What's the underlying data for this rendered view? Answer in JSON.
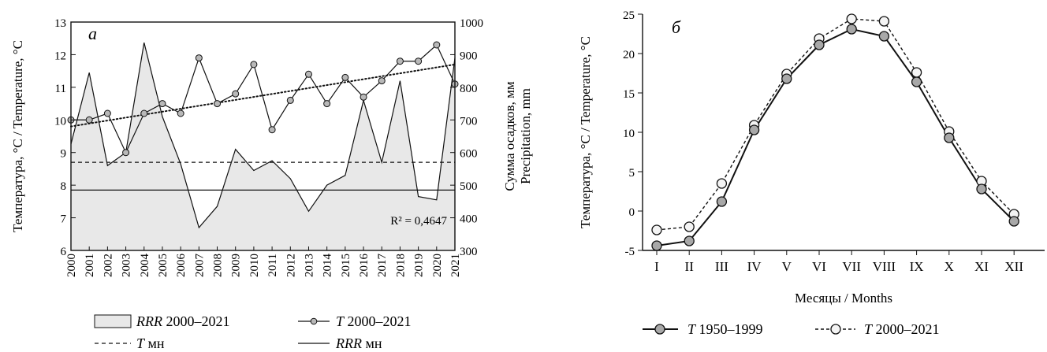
{
  "chart_data": [
    {
      "panel_label": "а",
      "type": "line",
      "x": [
        2000,
        2001,
        2002,
        2003,
        2004,
        2005,
        2006,
        2007,
        2008,
        2009,
        2010,
        2011,
        2012,
        2013,
        2014,
        2015,
        2016,
        2017,
        2018,
        2019,
        2020,
        2021
      ],
      "xticks": [
        "2000",
        "2001",
        "2002",
        "2003",
        "2004",
        "2005",
        "2006",
        "2007",
        "2008",
        "2009",
        "2010",
        "2011",
        "2012",
        "2013",
        "2014",
        "2015",
        "2016",
        "2017",
        "2018",
        "2019",
        "2020",
        "2021"
      ],
      "series": [
        {
          "name_italic": "RRR",
          "name_rest": " 2000–2021",
          "type": "area",
          "axis": "right",
          "values": [
            626,
            845,
            560,
            600,
            937,
            710,
            565,
            370,
            435,
            610,
            545,
            575,
            520,
            420,
            500,
            530,
            760,
            570,
            820,
            465,
            455,
            890
          ]
        },
        {
          "name_italic": "T",
          "name_rest": " 2000–2021",
          "type": "line-marker",
          "axis": "left",
          "values": [
            10.0,
            10.0,
            10.2,
            9.0,
            10.2,
            10.5,
            10.2,
            11.9,
            10.5,
            10.8,
            11.7,
            9.7,
            10.6,
            11.4,
            10.5,
            11.3,
            10.7,
            11.2,
            11.8,
            11.8,
            12.3,
            11.1
          ]
        },
        {
          "name_italic": "T",
          "name_rest": " мн",
          "type": "hline-dashed",
          "axis": "left",
          "value": 8.7
        },
        {
          "name_italic": "RRR",
          "name_rest": " мн",
          "type": "hline-solid",
          "axis": "right",
          "value": 485
        }
      ],
      "trendline": {
        "axis": "left",
        "from": 9.8,
        "to": 11.7
      },
      "annotation": "R² = 0,4647",
      "ylabel_left": "Температура, °C / Temperature, °C",
      "ylabel_right_1": "Сумма осадков, мм",
      "ylabel_right_2": "Precipitation, mm",
      "ylim_left": [
        6,
        13
      ],
      "yticks_left": [
        "6",
        "7",
        "8",
        "9",
        "10",
        "11",
        "12",
        "13"
      ],
      "ylim_right": [
        300,
        1000
      ],
      "yticks_right": [
        "300",
        "400",
        "500",
        "600",
        "700",
        "800",
        "900",
        "1000"
      ],
      "legend_placement": "bottom",
      "colors": {
        "area_fill": "#e8e8e8",
        "marker_fill": "#b8b8b8",
        "line": "#111111"
      }
    },
    {
      "panel_label": "б",
      "type": "line",
      "categories": [
        "I",
        "II",
        "III",
        "IV",
        "V",
        "VI",
        "VII",
        "VIII",
        "IX",
        "X",
        "XI",
        "XII"
      ],
      "series": [
        {
          "name_italic": "T",
          "name_rest": " 1950–1999",
          "style": "solid",
          "marker_fill": "#a8a8a8",
          "values": [
            -4.4,
            -3.8,
            1.2,
            10.3,
            16.8,
            21.1,
            23.1,
            22.2,
            16.4,
            9.3,
            2.8,
            -1.3
          ]
        },
        {
          "name_italic": "T",
          "name_rest": " 2000–2021",
          "style": "dashed",
          "marker_fill": "#f4f4f4",
          "values": [
            -2.4,
            -2.0,
            3.5,
            10.9,
            17.4,
            21.9,
            24.4,
            24.1,
            17.6,
            10.1,
            3.8,
            -0.4
          ]
        }
      ],
      "xlabel": "Месяцы / Months",
      "ylabel": "Температура, °C / Temperature, °C",
      "ylim": [
        -5,
        25
      ],
      "yticks": [
        "-5",
        "0",
        "5",
        "10",
        "15",
        "20",
        "25"
      ],
      "legend_placement": "bottom"
    }
  ]
}
